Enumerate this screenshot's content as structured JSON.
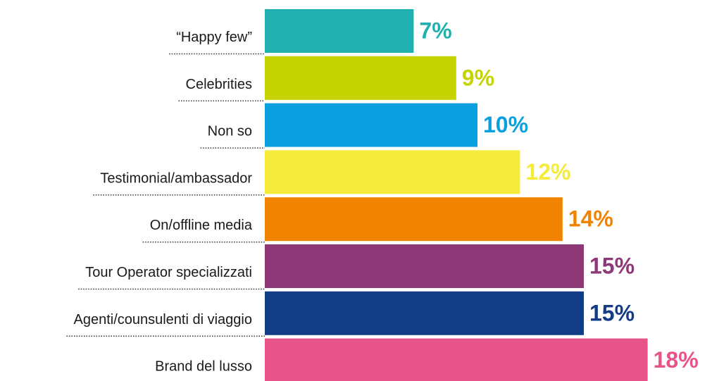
{
  "chart_data": {
    "type": "bar",
    "orientation": "horizontal",
    "categories": [
      "“Happy few”",
      "Celebrities",
      "Non so",
      "Testimonial/ambassador",
      "On/offline media",
      "Tour Operator specializzati",
      "Agenti/counsulenti di viaggio",
      "Brand del lusso"
    ],
    "values": [
      7,
      9,
      10,
      12,
      14,
      15,
      15,
      18
    ],
    "value_labels": [
      "7%",
      "9%",
      "10%",
      "12%",
      "14%",
      "15%",
      "15%",
      "18%"
    ],
    "colors": [
      "#20b0b0",
      "#c5d300",
      "#0aa0e0",
      "#f5eb3a",
      "#f08400",
      "#8e3878",
      "#133c86",
      "#e8548a"
    ]
  }
}
